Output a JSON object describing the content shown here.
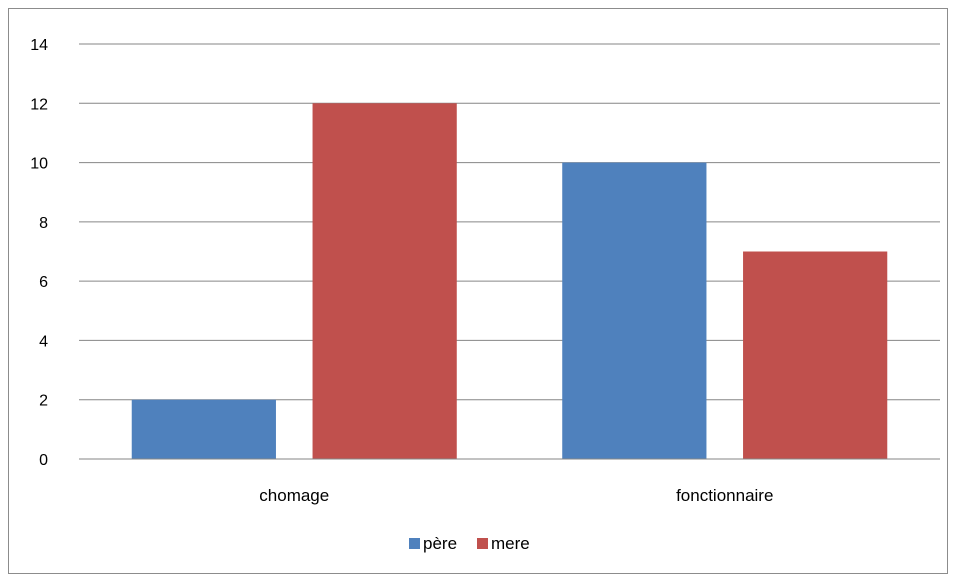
{
  "chart_data": {
    "type": "bar",
    "categories": [
      "chomage",
      "fonctionnaire"
    ],
    "series": [
      {
        "name": "père",
        "values": [
          2,
          10
        ],
        "color": "#4f81bd"
      },
      {
        "name": "mere",
        "values": [
          12,
          7
        ],
        "color": "#c0504d"
      }
    ],
    "ylim": [
      0,
      14
    ],
    "yticks": [
      "0",
      "2",
      "4",
      "6",
      "8",
      "10",
      "12",
      "14"
    ],
    "grid": true,
    "legend": "bottom-center"
  }
}
